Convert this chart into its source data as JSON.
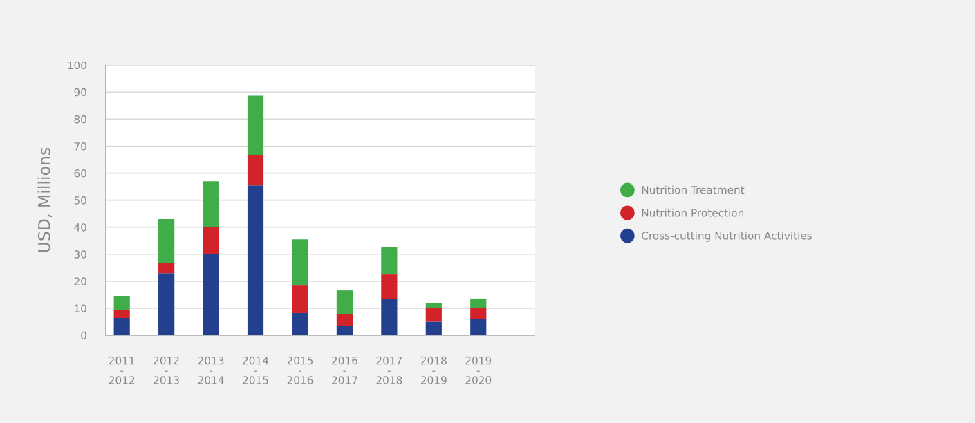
{
  "chart_data": {
    "type": "bar",
    "stacked": true,
    "ylabel": "USD, Millions",
    "categories": [
      "2011\n-\n2012",
      "2012\n-\n2013",
      "2013\n-\n2014",
      "2014\n-\n2015",
      "2015\n-\n2016",
      "2016\n-\n2017",
      "2017\n-\n2018",
      "2018\n-\n2019",
      "2019\n-\n2020"
    ],
    "series": [
      {
        "name": "Cross-cutting Nutrition Activities",
        "color": "#23408e",
        "values": [
          6.4,
          23,
          30,
          55.5,
          8.2,
          3.4,
          13.3,
          5,
          6
        ]
      },
      {
        "name": "Nutrition Protection",
        "color": "#d2232a",
        "values": [
          2.8,
          3.6,
          10.2,
          11.3,
          10.2,
          4.3,
          9.2,
          5,
          4.2
        ]
      },
      {
        "name": "Nutrition Treatment",
        "color": "#41ad49",
        "values": [
          5.4,
          16.4,
          16.8,
          21.9,
          17.1,
          8.9,
          10,
          2,
          3.4
        ]
      }
    ],
    "ylim": [
      0,
      100
    ],
    "yticks": [
      0,
      10,
      20,
      30,
      40,
      50,
      60,
      70,
      80,
      90,
      100
    ],
    "grid": "y",
    "legend": "right"
  }
}
